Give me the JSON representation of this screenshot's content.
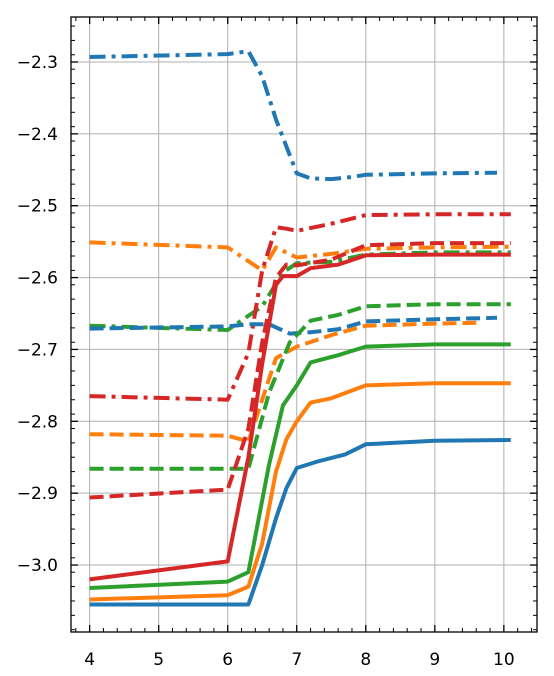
{
  "chart_data": {
    "type": "line",
    "title": "",
    "xlabel": "",
    "ylabel": "",
    "xlim": [
      3.73,
      10.48
    ],
    "ylim": [
      -3.0932,
      -2.2374
    ],
    "grid": true,
    "legend": "none",
    "x_ticks": [
      4,
      5,
      6,
      7,
      8,
      9,
      10
    ],
    "x_tick_labels": [
      "4",
      "5",
      "6",
      "7",
      "8",
      "9",
      "10"
    ],
    "y_ticks": [
      -3.0,
      -2.9,
      -2.8,
      -2.7,
      -2.6,
      -2.5,
      -2.4,
      -2.3
    ],
    "y_tick_labels": [
      "−3.0",
      "−2.9",
      "−2.8",
      "−2.7",
      "−2.6",
      "−2.5",
      "−2.4",
      "−2.3"
    ],
    "series": [
      {
        "color": "#1f77b4",
        "dash": "dashdot",
        "x": [
          4,
          6,
          6.3,
          6.5,
          6.7,
          7,
          7.2,
          7.5,
          7.8,
          8,
          9,
          9.9
        ],
        "y": [
          -2.293,
          -2.289,
          -2.285,
          -2.32,
          -2.38,
          -2.455,
          -2.462,
          -2.463,
          -2.46,
          -2.457,
          -2.455,
          -2.454
        ]
      },
      {
        "color": "#ff7f0e",
        "dash": "dashdot",
        "x": [
          4,
          6,
          6.5,
          6.7,
          7,
          7.5,
          8,
          9,
          10.1
        ],
        "y": [
          -2.551,
          -2.558,
          -2.59,
          -2.558,
          -2.572,
          -2.567,
          -2.56,
          -2.558,
          -2.557
        ]
      },
      {
        "color": "#2ca02c",
        "dash": "dashdot",
        "x": [
          4,
          6,
          6.5,
          6.8,
          7,
          7.5,
          8,
          9,
          10.1
        ],
        "y": [
          -2.667,
          -2.673,
          -2.64,
          -2.593,
          -2.58,
          -2.578,
          -2.568,
          -2.565,
          -2.565
        ]
      },
      {
        "color": "#d62728",
        "dash": "dashdot",
        "x": [
          4,
          6,
          6.3,
          6.5,
          6.7,
          6.85,
          7,
          7.5,
          8,
          9,
          10.1
        ],
        "y": [
          -2.765,
          -2.77,
          -2.705,
          -2.59,
          -2.53,
          -2.532,
          -2.535,
          -2.525,
          -2.513,
          -2.512,
          -2.512
        ]
      },
      {
        "color": "#1f77b4",
        "dash": "dashed",
        "x": [
          4,
          6,
          6.3,
          6.6,
          6.9,
          7.2,
          7.6,
          8,
          9,
          9.9
        ],
        "y": [
          -2.671,
          -2.668,
          -2.665,
          -2.665,
          -2.678,
          -2.676,
          -2.672,
          -2.661,
          -2.658,
          -2.656
        ]
      },
      {
        "color": "#ff7f0e",
        "dash": "dashed",
        "x": [
          4,
          6,
          6.3,
          6.5,
          6.7,
          7,
          7.5,
          8,
          9,
          9.6
        ],
        "y": [
          -2.818,
          -2.82,
          -2.828,
          -2.77,
          -2.712,
          -2.696,
          -2.68,
          -2.667,
          -2.664,
          -2.663
        ]
      },
      {
        "color": "#2ca02c",
        "dash": "dashed",
        "x": [
          4,
          6,
          6.3,
          6.6,
          6.9,
          7.2,
          7.6,
          8,
          9,
          10.1
        ],
        "y": [
          -2.866,
          -2.866,
          -2.866,
          -2.76,
          -2.69,
          -2.66,
          -2.652,
          -2.64,
          -2.637,
          -2.637
        ]
      },
      {
        "color": "#d62728",
        "dash": "dashed",
        "x": [
          4,
          6,
          6.3,
          6.5,
          6.7,
          6.85,
          7,
          7.5,
          8,
          9,
          10.1
        ],
        "y": [
          -2.906,
          -2.895,
          -2.81,
          -2.69,
          -2.6,
          -2.582,
          -2.583,
          -2.575,
          -2.555,
          -2.552,
          -2.552
        ]
      },
      {
        "color": "#1f77b4",
        "dash": "solid",
        "x": [
          4,
          6.3,
          6.5,
          6.7,
          6.85,
          7,
          7.3,
          7.7,
          8,
          9,
          10.1
        ],
        "y": [
          -3.055,
          -3.055,
          -3.0,
          -2.935,
          -2.893,
          -2.865,
          -2.856,
          -2.846,
          -2.832,
          -2.827,
          -2.826
        ]
      },
      {
        "color": "#ff7f0e",
        "dash": "solid",
        "x": [
          4,
          6,
          6.3,
          6.5,
          6.7,
          6.85,
          7,
          7.2,
          7.5,
          8,
          9,
          10.1
        ],
        "y": [
          -3.048,
          -3.042,
          -3.03,
          -2.97,
          -2.87,
          -2.825,
          -2.8,
          -2.774,
          -2.768,
          -2.75,
          -2.747,
          -2.747
        ]
      },
      {
        "color": "#2ca02c",
        "dash": "solid",
        "x": [
          4,
          6,
          6.3,
          6.6,
          6.8,
          7,
          7.2,
          7.6,
          8,
          9,
          10.1
        ],
        "y": [
          -3.032,
          -3.023,
          -3.01,
          -2.86,
          -2.778,
          -2.75,
          -2.718,
          -2.708,
          -2.696,
          -2.693,
          -2.693
        ]
      },
      {
        "color": "#d62728",
        "dash": "solid",
        "x": [
          4,
          6,
          6.3,
          6.5,
          6.7,
          6.8,
          7,
          7.2,
          7.6,
          8,
          9,
          10.1
        ],
        "y": [
          -3.02,
          -2.995,
          -2.85,
          -2.72,
          -2.61,
          -2.598,
          -2.598,
          -2.587,
          -2.582,
          -2.569,
          -2.568,
          -2.568
        ]
      }
    ]
  }
}
